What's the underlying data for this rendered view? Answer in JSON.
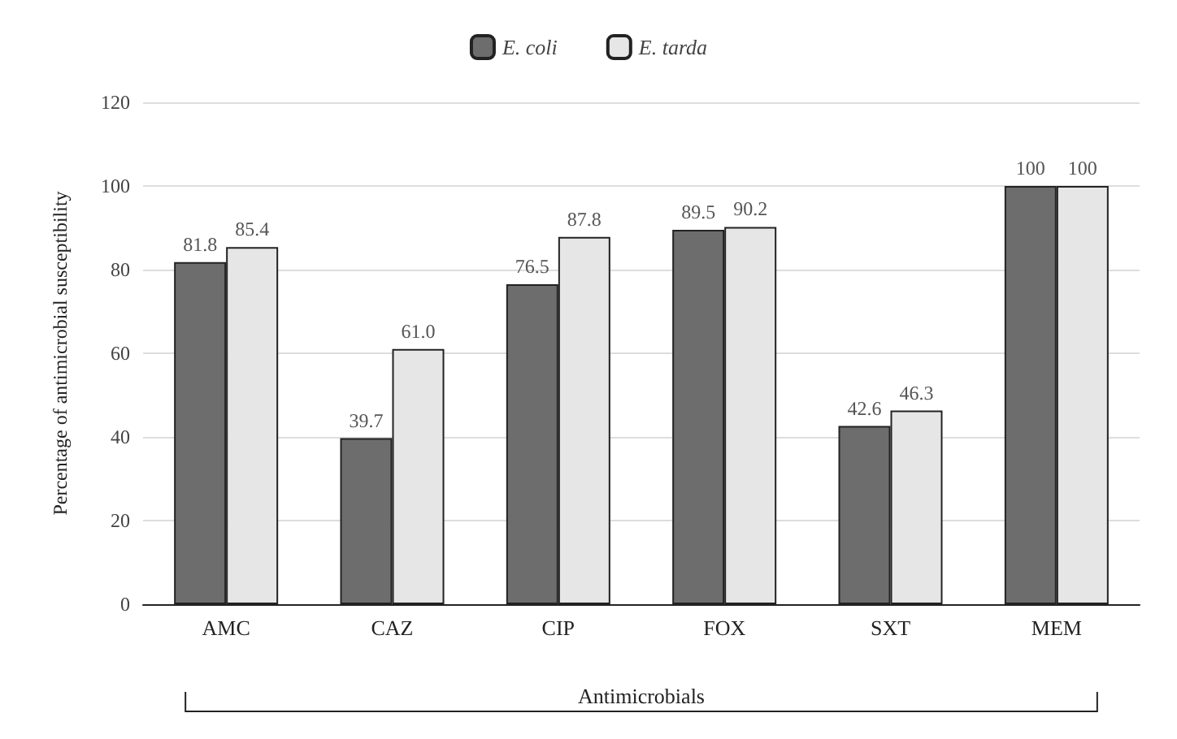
{
  "chart_data": {
    "type": "bar",
    "xlabel": "Antimicrobials",
    "ylabel": "Percentage of antimicrobial susceptibility",
    "categories": [
      "AMC",
      "CAZ",
      "CIP",
      "FOX",
      "SXT",
      "MEM"
    ],
    "series": [
      {
        "name": "E. coli",
        "color": "#6d6d6d",
        "values": [
          81.8,
          39.7,
          76.5,
          89.5,
          42.6,
          100
        ],
        "value_labels": [
          "81.8",
          "39.7",
          "76.5",
          "89.5",
          "42.6",
          "100"
        ]
      },
      {
        "name": "E. tarda",
        "color": "#e6e6e6",
        "values": [
          85.4,
          61.0,
          87.8,
          90.2,
          46.3,
          100
        ],
        "value_labels": [
          "85.4",
          "61.0",
          "87.8",
          "90.2",
          "46.3",
          "100"
        ]
      }
    ],
    "ylim": [
      0,
      120
    ],
    "yticks": [
      0,
      20,
      40,
      60,
      80,
      100,
      120
    ],
    "grid": "y",
    "legend": "top"
  }
}
